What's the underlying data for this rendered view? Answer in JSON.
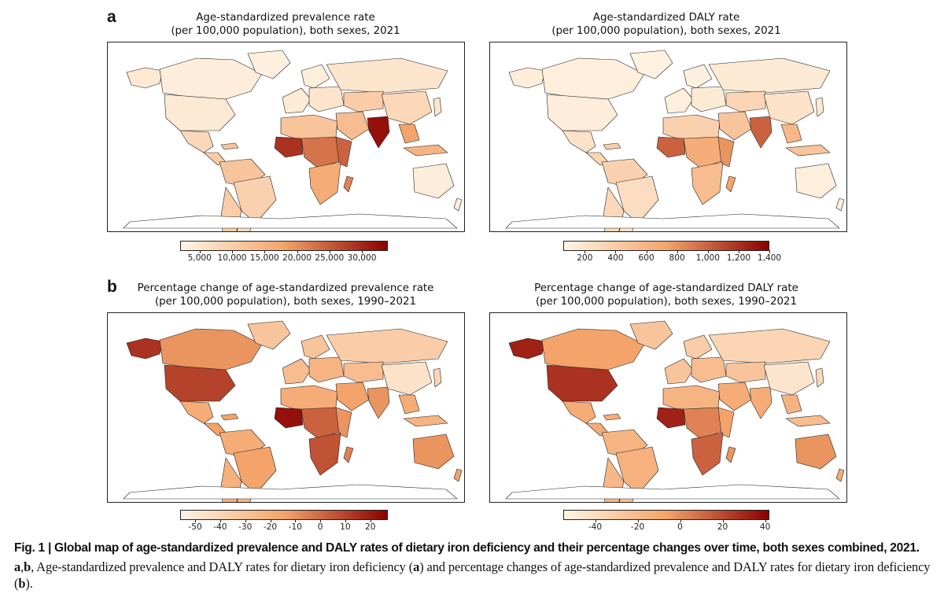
{
  "panels": {
    "a": {
      "letter": "a"
    },
    "b": {
      "letter": "b"
    }
  },
  "maps": [
    {
      "title_line1": "Age-standardized prevalence rate",
      "title_line2": "(per 100,000 population), both sexes, 2021",
      "legend": {
        "ticks": [
          "5,000",
          "10,000",
          "15,000",
          "20,000",
          "25,000",
          "30,000"
        ],
        "range": [
          2000,
          34000
        ],
        "values": [
          5000,
          10000,
          15000,
          20000,
          25000,
          30000
        ]
      }
    },
    {
      "title_line1": "Age-standardized DALY rate",
      "title_line2": "(per 100,000 population), both sexes, 2021",
      "legend": {
        "ticks": [
          "200",
          "400",
          "600",
          "800",
          "1,000",
          "1,200",
          "1,400"
        ],
        "range": [
          60,
          1400
        ],
        "values": [
          200,
          400,
          600,
          800,
          1000,
          1200,
          1400
        ]
      }
    },
    {
      "title_line1": "Percentage change of age-standardized prevalence rate",
      "title_line2": "(per 100,000 population), both sexes, 1990–2021",
      "legend": {
        "ticks": [
          "-50",
          "-40",
          "-30",
          "-20",
          "-10",
          "0",
          "10",
          "20"
        ],
        "range": [
          -56,
          27
        ],
        "values": [
          -50,
          -40,
          -30,
          -20,
          -10,
          0,
          10,
          20
        ]
      }
    },
    {
      "title_line1": "Percentage change of age-standardized DALY rate",
      "title_line2": "(per 100,000 population), both sexes, 1990–2021",
      "legend": {
        "ticks": [
          "-40",
          "-20",
          "0",
          "20",
          "40"
        ],
        "range": [
          -55,
          42
        ],
        "values": [
          -40,
          -20,
          0,
          20,
          40
        ]
      }
    }
  ],
  "colors": {
    "scale_low": "#fff5e6",
    "scale_mid": "#f4a46a",
    "scale_high": "#8b0000",
    "border": "#222222"
  },
  "caption": {
    "title": "Fig. 1 | Global map of age-standardized prevalence and DALY rates of dietary iron deficiency and their percentage changes over time, both sexes combined, 2021.",
    "body_ab": "a",
    "body_comma": ",",
    "body_b": "b",
    "body_text1": ", Age-standardized prevalence and DALY rates for dietary iron deficiency (",
    "body_a2": "a",
    "body_text2": ") and percentage changes of age-standardized prevalence and DALY rates for dietary iron deficiency (",
    "body_b2": "b",
    "body_text3": ")."
  }
}
